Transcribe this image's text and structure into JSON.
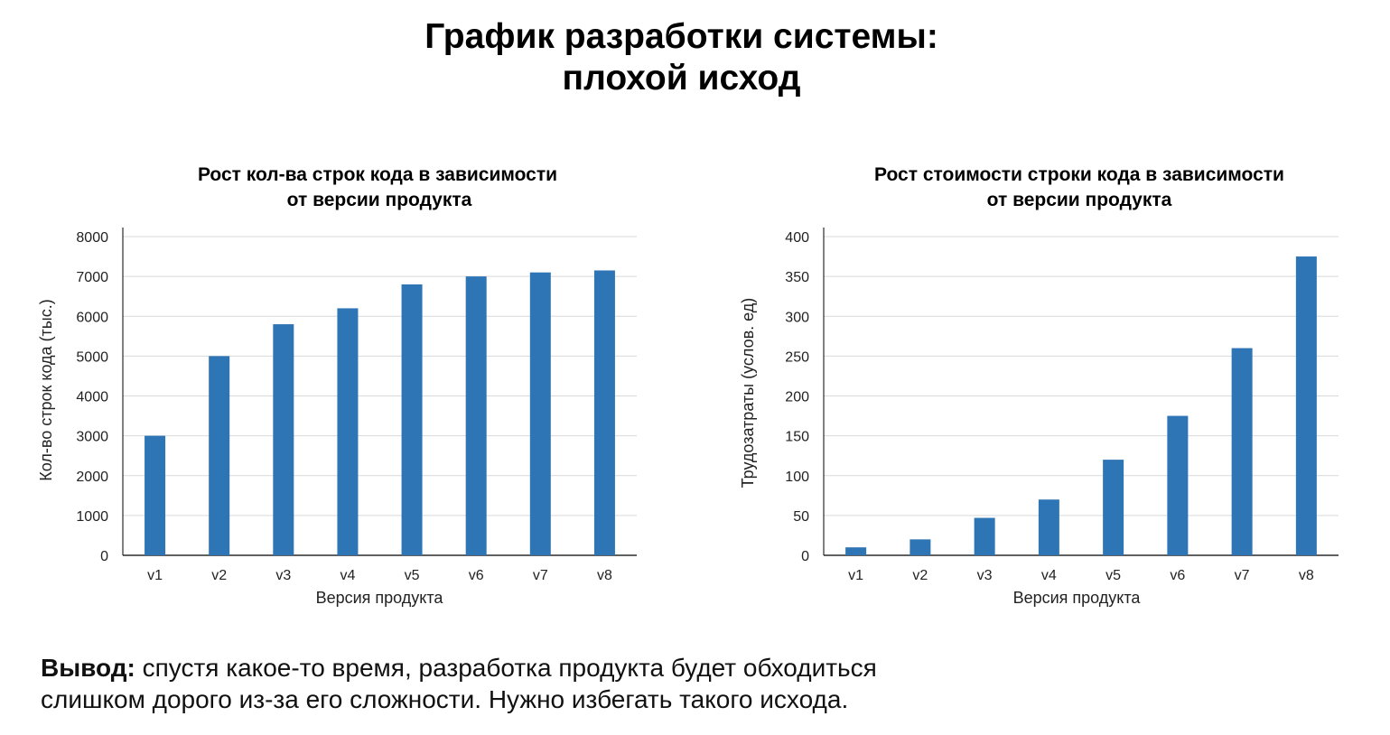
{
  "page": {
    "title_line1": "График разработки системы:",
    "title_line2": "плохой исход"
  },
  "conclusion": {
    "label": "Вывод:",
    "text_line1": "спустя какое-то время, разработка продукта будет обходиться",
    "text_line2": "слишком дорого из-за его сложности. Нужно избегать такого исхода."
  },
  "colors": {
    "bar": "#2e75b6",
    "grid": "#d9d9d9",
    "axis": "#000000"
  },
  "chart_data": [
    {
      "type": "bar",
      "title_line1": "Рост кол-ва строк кода в зависимости",
      "title_line2": "от версии продукта",
      "categories": [
        "v1",
        "v2",
        "v3",
        "v4",
        "v5",
        "v6",
        "v7",
        "v8"
      ],
      "values": [
        3000,
        5000,
        5800,
        6200,
        6800,
        7000,
        7100,
        7150
      ],
      "xlabel": "Версия продукта",
      "ylabel": "Кол-во строк кода (тыс.)",
      "ylim": [
        0,
        8000
      ],
      "yticks": [
        0,
        1000,
        2000,
        3000,
        4000,
        5000,
        6000,
        7000,
        8000
      ],
      "grid": true,
      "legend": "none"
    },
    {
      "type": "bar",
      "title_line1": "Рост стоимости строки кода в зависимости",
      "title_line2": "от версии продукта",
      "categories": [
        "v1",
        "v2",
        "v3",
        "v4",
        "v5",
        "v6",
        "v7",
        "v8"
      ],
      "values": [
        10,
        20,
        47,
        70,
        120,
        175,
        260,
        375
      ],
      "xlabel": "Версия продукта",
      "ylabel": "Трудозатраты (услов. ед)",
      "ylim": [
        0,
        400
      ],
      "yticks": [
        0,
        50,
        100,
        150,
        200,
        250,
        300,
        350,
        400
      ],
      "grid": true,
      "legend": "none"
    }
  ]
}
